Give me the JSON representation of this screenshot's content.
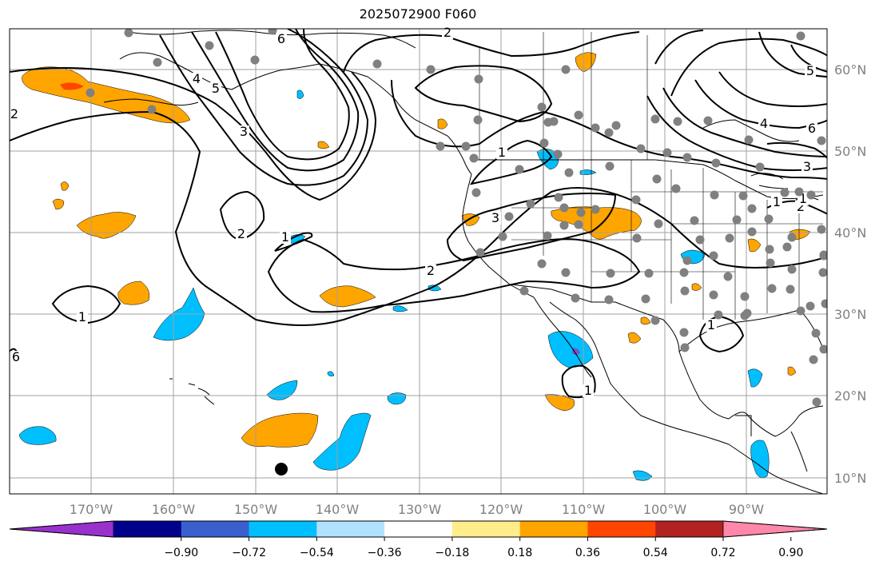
{
  "title": "2025072900 F060",
  "colors": {
    "grid": "#a0a0a0",
    "coast": "#000000",
    "contour": "#000000",
    "station": "#808080",
    "orange": "#ffa500",
    "cyan": "#00bfff",
    "red": "#ff4500"
  },
  "chart_data": {
    "type": "map",
    "title": "2025072900 F060",
    "lon_ticks": [
      "170°W",
      "160°W",
      "150°W",
      "140°W",
      "130°W",
      "120°W",
      "110°W",
      "100°W",
      "90°W"
    ],
    "lat_ticks": [
      "60°N",
      "50°N",
      "40°N",
      "30°N",
      "20°N",
      "10°N"
    ],
    "colorbar": {
      "ticks": [
        "−0.90",
        "−0.72",
        "−0.54",
        "−0.36",
        "−0.18",
        "0.18",
        "0.36",
        "0.54",
        "0.72",
        "0.90"
      ],
      "colors": [
        "#9932cc",
        "#00008b",
        "#3a5fcd",
        "#00bfff",
        "#b0e2ff",
        "#ffffff",
        "#ffec8b",
        "#ffa500",
        "#ff4500",
        "#b22222",
        "#ff88aa"
      ],
      "extend": "both"
    },
    "contour_labels": [
      "1",
      "2",
      "3",
      "4",
      "5",
      "6",
      "1",
      "2",
      "3",
      "1",
      "2",
      "1",
      "1",
      "1",
      "2",
      "3",
      "4",
      "5",
      "6",
      "6",
      "2",
      "1"
    ]
  }
}
